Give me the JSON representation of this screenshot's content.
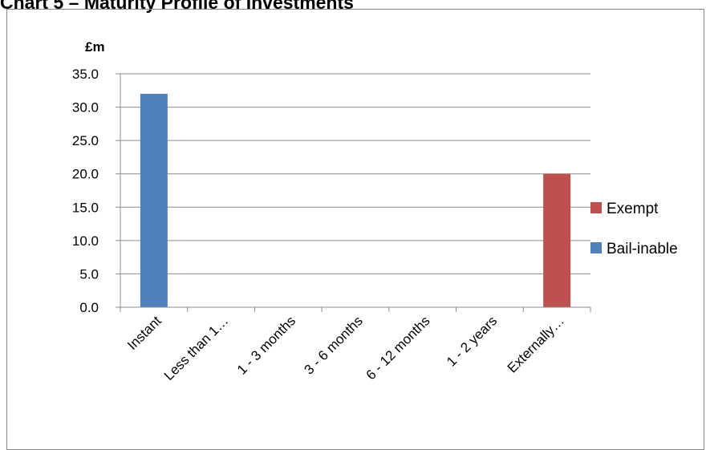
{
  "title": "Chart 5 – Maturity Profile of Investments",
  "chart_data": {
    "type": "bar",
    "title": "Chart 5 – Maturity Profile of Investments",
    "ylabel": "£m",
    "xlabel": "",
    "categories": [
      "Instant",
      "Less than 1…",
      "1 - 3 months",
      "3 - 6 months",
      "6 - 12 months",
      "1 - 2 years",
      "Externally…"
    ],
    "series": [
      {
        "name": "Bail-inable",
        "color": "#4f81bd",
        "values": [
          32,
          0,
          0,
          0,
          0,
          0,
          0
        ]
      },
      {
        "name": "Exempt",
        "color": "#c0504d",
        "values": [
          0,
          0,
          0,
          0,
          0,
          0,
          20
        ]
      }
    ],
    "stacked": true,
    "ylim": [
      0,
      35
    ],
    "yticks": [
      "0.0",
      "5.0",
      "10.0",
      "15.0",
      "20.0",
      "25.0",
      "30.0",
      "35.0"
    ],
    "grid": true,
    "legend_position": "right",
    "legend_order": [
      "Exempt",
      "Bail-inable"
    ]
  }
}
